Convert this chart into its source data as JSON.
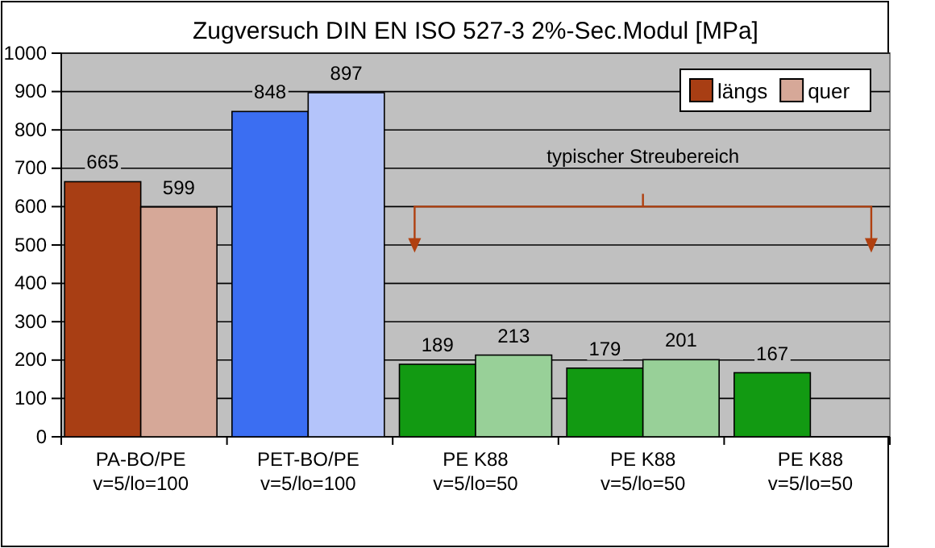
{
  "chart_data": {
    "type": "bar",
    "title": "Zugversuch DIN EN ISO 527-3  2%-Sec.Modul [MPa]",
    "categories": [
      "PA-BO/PE\nv=5/lo=100",
      "PET-BO/PE\nv=5/lo=100",
      "PE K88\nv=5/lo=50",
      "PE K88\nv=5/lo=50",
      "PE K88\nv=5/lo=50"
    ],
    "series": [
      {
        "name": "längs",
        "colors": [
          "#a83e14",
          "#3b6ef2",
          "#129a12",
          "#129a12",
          "#129a12"
        ],
        "values": [
          665,
          848,
          189,
          179,
          167
        ]
      },
      {
        "name": "quer",
        "colors": [
          "#d6a898",
          "#b4c4fa",
          "#98d098",
          "#98d098",
          null
        ],
        "values": [
          599,
          897,
          213,
          201,
          null
        ]
      }
    ],
    "ylim": [
      0,
      1000
    ],
    "yticks": [
      0,
      100,
      200,
      300,
      400,
      500,
      600,
      700,
      800,
      900,
      1000
    ],
    "grid": "y",
    "legend": "top right",
    "data_labels": true,
    "annotations": [
      "typischer Streubereich"
    ]
  }
}
